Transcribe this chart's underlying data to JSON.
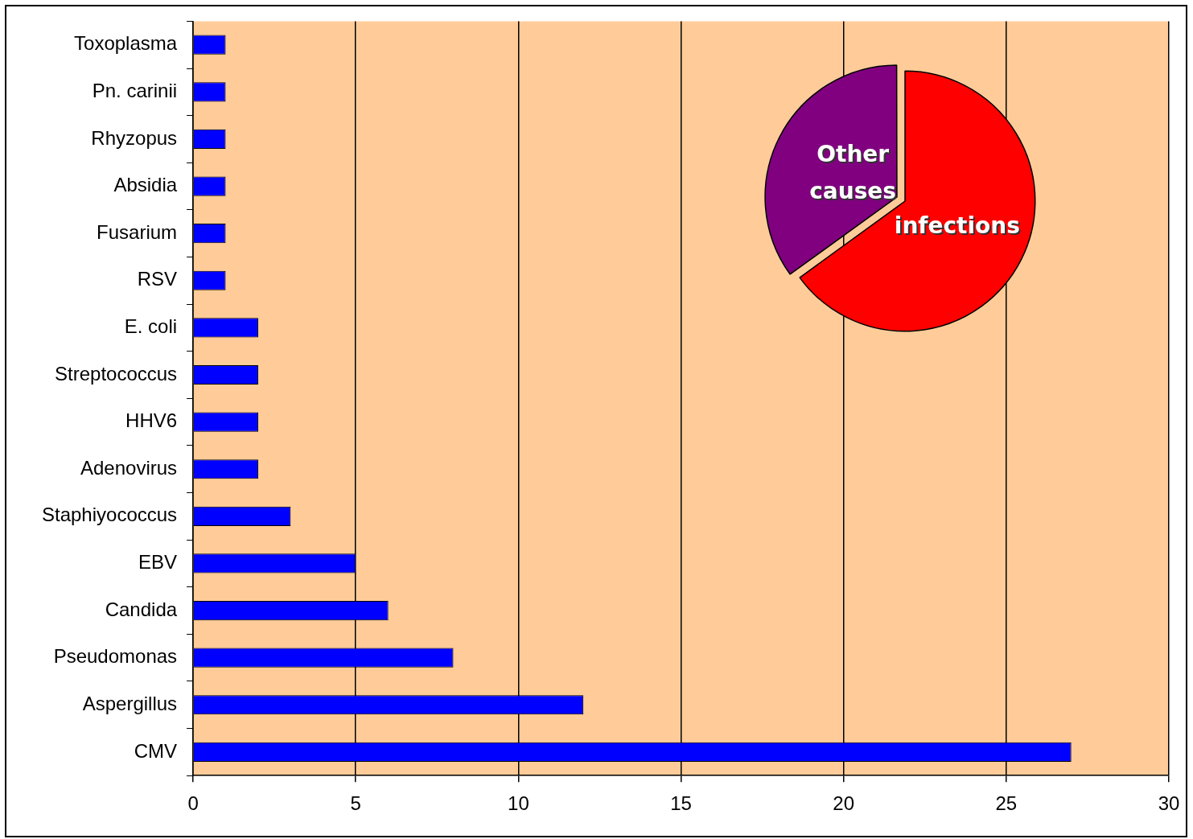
{
  "chart_data": [
    {
      "type": "bar",
      "orientation": "horizontal",
      "categories": [
        "Toxoplasma",
        "Pn. carinii",
        "Rhyzopus",
        "Absidia",
        "Fusarium",
        "RSV",
        "E. coli",
        "Streptococcus",
        "HHV6",
        "Adenovirus",
        "Staphiyococcus",
        "EBV",
        "Candida",
        "Pseudomonas",
        "Aspergillus",
        "CMV"
      ],
      "values": [
        1,
        1,
        1,
        1,
        1,
        1,
        2,
        2,
        2,
        2,
        3,
        5,
        6,
        8,
        12,
        27
      ],
      "color": "#0000ff",
      "xlim": [
        0,
        30
      ],
      "xticks": [
        0,
        5,
        10,
        15,
        20,
        25,
        30
      ],
      "grid": "x",
      "legend": false
    },
    {
      "type": "pie",
      "categories": [
        "infections",
        "Other causes"
      ],
      "values": [
        65,
        35
      ],
      "colors": [
        "#ff0000",
        "#800080"
      ],
      "legend": false
    }
  ]
}
